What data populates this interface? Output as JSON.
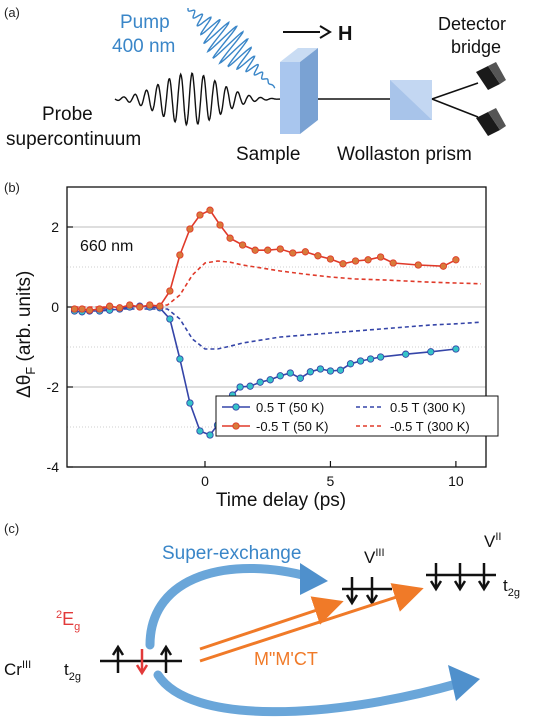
{
  "panel_a": {
    "label": "(a)",
    "pump_line1": "Pump",
    "pump_line2": "400 nm",
    "field": "H",
    "detector_line1": "Detector",
    "detector_line2": "bridge",
    "probe_line1": "Probe",
    "probe_line2": "supercontinuum",
    "sample": "Sample",
    "wollaston": "Wollaston prism",
    "colors": {
      "pump": "#3a86c8",
      "optic": "#9ec0e8",
      "detector": "#1a1a1a"
    }
  },
  "panel_b": {
    "label": "(b)",
    "wavelength": "660 nm"
  },
  "chart_data": {
    "type": "line",
    "xlabel": "Time delay (ps)",
    "ylabel": "Δθ",
    "ylabel_sub": "F",
    "ylabel_suffix": " (arb. units)",
    "xlim": [
      -5.5,
      11.2
    ],
    "ylim": [
      -4,
      3
    ],
    "xticks": [
      0,
      5,
      10
    ],
    "yticks": [
      -4,
      -2,
      0,
      2
    ],
    "grid": true,
    "legend_position": "bottom-right",
    "series": [
      {
        "name": "0.5 T (50 K)",
        "color": "#3545a8",
        "marker_color": "#35c4c8",
        "style": "solid",
        "markers": true,
        "x": [
          -5.2,
          -4.9,
          -4.6,
          -4.2,
          -3.8,
          -3.4,
          -3.0,
          -2.6,
          -2.2,
          -1.8,
          -1.4,
          -1.0,
          -0.6,
          -0.2,
          0.2,
          0.5,
          0.8,
          1.1,
          1.4,
          1.8,
          2.2,
          2.6,
          3.0,
          3.4,
          3.8,
          4.2,
          4.6,
          5.0,
          5.4,
          5.8,
          6.2,
          6.6,
          7.0,
          8.0,
          9.0,
          10.0
        ],
        "y": [
          -0.1,
          -0.12,
          -0.1,
          -0.1,
          -0.08,
          -0.05,
          0.0,
          0.02,
          0.0,
          -0.02,
          -0.3,
          -1.3,
          -2.4,
          -3.1,
          -3.2,
          -2.95,
          -2.6,
          -2.2,
          -2.0,
          -1.98,
          -1.88,
          -1.82,
          -1.72,
          -1.65,
          -1.78,
          -1.62,
          -1.55,
          -1.6,
          -1.58,
          -1.42,
          -1.35,
          -1.3,
          -1.25,
          -1.18,
          -1.12,
          -1.05
        ]
      },
      {
        "name": "-0.5 T (50 K)",
        "color": "#e03a2a",
        "marker_color": "#d87a3a",
        "style": "solid",
        "markers": true,
        "x": [
          -5.2,
          -4.9,
          -4.6,
          -4.2,
          -3.8,
          -3.4,
          -3.0,
          -2.6,
          -2.2,
          -1.8,
          -1.4,
          -1.0,
          -0.6,
          -0.2,
          0.2,
          0.6,
          1.0,
          1.5,
          2.0,
          2.5,
          3.0,
          3.5,
          4.0,
          4.5,
          5.0,
          5.5,
          6.0,
          6.5,
          7.0,
          7.5,
          8.5,
          9.5,
          10.0
        ],
        "y": [
          -0.05,
          -0.05,
          -0.08,
          -0.05,
          0.02,
          -0.02,
          0.05,
          0.0,
          0.05,
          0.02,
          0.4,
          1.3,
          1.95,
          2.3,
          2.42,
          2.05,
          1.72,
          1.55,
          1.42,
          1.42,
          1.45,
          1.35,
          1.38,
          1.28,
          1.2,
          1.08,
          1.15,
          1.18,
          1.25,
          1.1,
          1.05,
          1.02,
          1.18
        ]
      },
      {
        "name": "0.5 T (300 K)",
        "color": "#3545a8",
        "style": "dashed",
        "markers": false,
        "x": [
          -5.2,
          -3.0,
          -1.5,
          -1.0,
          -0.5,
          0.0,
          0.5,
          1.0,
          1.5,
          2.0,
          3.0,
          4.0,
          5.0,
          6.0,
          7.0,
          8.0,
          9.0,
          10.0,
          11.0
        ],
        "y": [
          -0.05,
          -0.05,
          -0.05,
          -0.3,
          -0.8,
          -1.05,
          -1.05,
          -0.98,
          -0.9,
          -0.85,
          -0.75,
          -0.7,
          -0.65,
          -0.6,
          -0.55,
          -0.5,
          -0.45,
          -0.42,
          -0.38
        ]
      },
      {
        "name": "-0.5 T (300 K)",
        "color": "#e03a2a",
        "style": "dashed",
        "markers": false,
        "x": [
          -5.2,
          -3.0,
          -1.5,
          -1.0,
          -0.5,
          0.0,
          0.5,
          1.0,
          1.5,
          2.0,
          3.0,
          4.0,
          5.0,
          6.0,
          7.0,
          8.0,
          9.0,
          10.0,
          11.0
        ],
        "y": [
          0.0,
          0.0,
          0.05,
          0.3,
          0.8,
          1.1,
          1.15,
          1.12,
          1.05,
          1.0,
          0.9,
          0.82,
          0.75,
          0.7,
          0.68,
          0.65,
          0.62,
          0.6,
          0.58
        ]
      }
    ]
  },
  "panel_c": {
    "label": "(c)",
    "super_exchange": "Super-exchange",
    "v3_base": "V",
    "v3_sup": "III",
    "v2_base": "V",
    "v2_sup": "II",
    "e_base": "E",
    "e_sup": "2",
    "e_sub": "g",
    "cr_base": "Cr",
    "cr_sup": "III",
    "t2g_base": "t",
    "t2g_sub": "2g",
    "mmct": "M\"M'CT",
    "colors": {
      "super_arrow": "#6aa6d9",
      "red": "#e23a3a",
      "orange": "#f07a28"
    }
  }
}
